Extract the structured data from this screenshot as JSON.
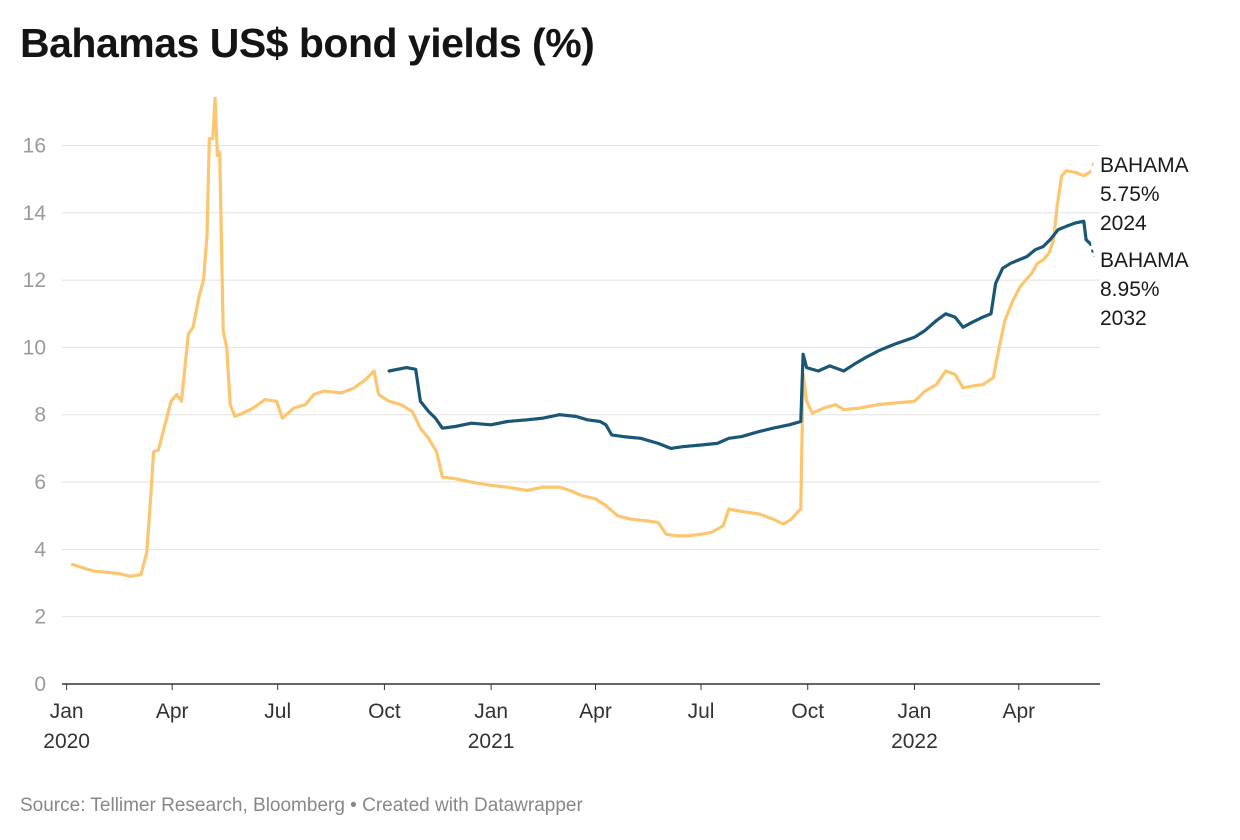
{
  "title": "Bahamas US$ bond yields (%)",
  "source": "Source: Tellimer Research, Bloomberg • Created with Datawrapper",
  "chart_data": {
    "type": "line",
    "title": "Bahamas US$ bond yields (%)",
    "xlabel": "",
    "ylabel": "",
    "ylim": [
      0,
      17.5
    ],
    "y_ticks": [
      0,
      2,
      4,
      6,
      8,
      10,
      12,
      14,
      16
    ],
    "x_range": [
      "2019-12-28",
      "2022-06-10"
    ],
    "x_ticks": [
      {
        "date": "2020-01-01",
        "label": "Jan",
        "year": "2020"
      },
      {
        "date": "2020-04-01",
        "label": "Apr",
        "year": ""
      },
      {
        "date": "2020-07-01",
        "label": "Jul",
        "year": ""
      },
      {
        "date": "2020-10-01",
        "label": "Oct",
        "year": ""
      },
      {
        "date": "2021-01-01",
        "label": "Jan",
        "year": "2021"
      },
      {
        "date": "2021-04-01",
        "label": "Apr",
        "year": ""
      },
      {
        "date": "2021-07-01",
        "label": "Jul",
        "year": ""
      },
      {
        "date": "2021-10-01",
        "label": "Oct",
        "year": ""
      },
      {
        "date": "2022-01-01",
        "label": "Jan",
        "year": "2022"
      },
      {
        "date": "2022-04-01",
        "label": "Apr",
        "year": ""
      }
    ],
    "grid": true,
    "series": [
      {
        "name": "BAHAMA 5.75% 2024",
        "label_lines": [
          "BAHAMA",
          "5.75%",
          "2024"
        ],
        "color": "#fbc66f",
        "points": [
          [
            "2020-01-06",
            3.55
          ],
          [
            "2020-01-15",
            3.45
          ],
          [
            "2020-01-25",
            3.35
          ],
          [
            "2020-02-05",
            3.32
          ],
          [
            "2020-02-15",
            3.28
          ],
          [
            "2020-02-25",
            3.2
          ],
          [
            "2020-03-05",
            3.25
          ],
          [
            "2020-03-10",
            3.9
          ],
          [
            "2020-03-13",
            5.3
          ],
          [
            "2020-03-16",
            6.9
          ],
          [
            "2020-03-20",
            6.95
          ],
          [
            "2020-03-25",
            7.6
          ],
          [
            "2020-03-31",
            8.4
          ],
          [
            "2020-04-05",
            8.6
          ],
          [
            "2020-04-09",
            8.4
          ],
          [
            "2020-04-12",
            9.4
          ],
          [
            "2020-04-15",
            10.4
          ],
          [
            "2020-04-19",
            10.6
          ],
          [
            "2020-04-24",
            11.5
          ],
          [
            "2020-04-28",
            12.0
          ],
          [
            "2020-05-01",
            13.3
          ],
          [
            "2020-05-03",
            16.2
          ],
          [
            "2020-05-06",
            16.2
          ],
          [
            "2020-05-08",
            17.4
          ],
          [
            "2020-05-10",
            15.7
          ],
          [
            "2020-05-12",
            15.8
          ],
          [
            "2020-05-15",
            10.5
          ],
          [
            "2020-05-18",
            10.0
          ],
          [
            "2020-05-21",
            8.3
          ],
          [
            "2020-05-25",
            7.95
          ],
          [
            "2020-06-01",
            8.05
          ],
          [
            "2020-06-10",
            8.2
          ],
          [
            "2020-06-20",
            8.45
          ],
          [
            "2020-06-30",
            8.4
          ],
          [
            "2020-07-05",
            7.9
          ],
          [
            "2020-07-15",
            8.2
          ],
          [
            "2020-07-25",
            8.3
          ],
          [
            "2020-08-01",
            8.6
          ],
          [
            "2020-08-10",
            8.7
          ],
          [
            "2020-08-25",
            8.65
          ],
          [
            "2020-09-05",
            8.8
          ],
          [
            "2020-09-15",
            9.05
          ],
          [
            "2020-09-22",
            9.3
          ],
          [
            "2020-09-26",
            8.6
          ],
          [
            "2020-10-05",
            8.4
          ],
          [
            "2020-10-15",
            8.3
          ],
          [
            "2020-10-25",
            8.1
          ],
          [
            "2020-11-01",
            7.6
          ],
          [
            "2020-11-08",
            7.3
          ],
          [
            "2020-11-15",
            6.9
          ],
          [
            "2020-11-20",
            6.15
          ],
          [
            "2020-12-01",
            6.1
          ],
          [
            "2020-12-15",
            6.0
          ],
          [
            "2021-01-01",
            5.9
          ],
          [
            "2021-01-15",
            5.85
          ],
          [
            "2021-02-01",
            5.75
          ],
          [
            "2021-02-15",
            5.85
          ],
          [
            "2021-03-01",
            5.85
          ],
          [
            "2021-03-10",
            5.75
          ],
          [
            "2021-03-20",
            5.6
          ],
          [
            "2021-04-01",
            5.5
          ],
          [
            "2021-04-10",
            5.3
          ],
          [
            "2021-04-20",
            5.0
          ],
          [
            "2021-05-01",
            4.9
          ],
          [
            "2021-05-15",
            4.85
          ],
          [
            "2021-05-25",
            4.8
          ],
          [
            "2021-06-01",
            4.45
          ],
          [
            "2021-06-10",
            4.4
          ],
          [
            "2021-06-20",
            4.4
          ],
          [
            "2021-07-01",
            4.45
          ],
          [
            "2021-07-10",
            4.5
          ],
          [
            "2021-07-20",
            4.7
          ],
          [
            "2021-07-25",
            5.2
          ],
          [
            "2021-08-01",
            5.15
          ],
          [
            "2021-08-10",
            5.1
          ],
          [
            "2021-08-20",
            5.05
          ],
          [
            "2021-09-01",
            4.9
          ],
          [
            "2021-09-10",
            4.75
          ],
          [
            "2021-09-17",
            4.9
          ],
          [
            "2021-09-22",
            5.1
          ],
          [
            "2021-09-25",
            5.2
          ],
          [
            "2021-09-27",
            9.2
          ],
          [
            "2021-09-30",
            8.4
          ],
          [
            "2021-10-05",
            8.05
          ],
          [
            "2021-10-15",
            8.2
          ],
          [
            "2021-10-25",
            8.3
          ],
          [
            "2021-11-01",
            8.15
          ],
          [
            "2021-11-15",
            8.2
          ],
          [
            "2021-12-01",
            8.3
          ],
          [
            "2021-12-15",
            8.35
          ],
          [
            "2022-01-01",
            8.4
          ],
          [
            "2022-01-10",
            8.7
          ],
          [
            "2022-01-20",
            8.9
          ],
          [
            "2022-01-28",
            9.3
          ],
          [
            "2022-02-05",
            9.2
          ],
          [
            "2022-02-12",
            8.8
          ],
          [
            "2022-02-20",
            8.85
          ],
          [
            "2022-03-01",
            8.9
          ],
          [
            "2022-03-10",
            9.1
          ],
          [
            "2022-03-15",
            10.0
          ],
          [
            "2022-03-20",
            10.8
          ],
          [
            "2022-03-27",
            11.4
          ],
          [
            "2022-04-02",
            11.8
          ],
          [
            "2022-04-07",
            12.0
          ],
          [
            "2022-04-12",
            12.2
          ],
          [
            "2022-04-17",
            12.5
          ],
          [
            "2022-04-22",
            12.6
          ],
          [
            "2022-04-27",
            12.8
          ],
          [
            "2022-05-01",
            13.2
          ],
          [
            "2022-05-04",
            14.2
          ],
          [
            "2022-05-08",
            15.1
          ],
          [
            "2022-05-12",
            15.25
          ],
          [
            "2022-05-20",
            15.2
          ],
          [
            "2022-05-27",
            15.1
          ],
          [
            "2022-06-01",
            15.2
          ]
        ],
        "dashed_to": [
          "2022-06-05",
          15.55
        ]
      },
      {
        "name": "BAHAMA 8.95% 2032",
        "label_lines": [
          "BAHAMA",
          "8.95%",
          "2032"
        ],
        "color": "#1a5775",
        "points": [
          [
            "2020-10-05",
            9.3
          ],
          [
            "2020-10-20",
            9.4
          ],
          [
            "2020-10-28",
            9.35
          ],
          [
            "2020-11-01",
            8.4
          ],
          [
            "2020-11-08",
            8.1
          ],
          [
            "2020-11-14",
            7.9
          ],
          [
            "2020-11-20",
            7.6
          ],
          [
            "2020-12-01",
            7.65
          ],
          [
            "2020-12-15",
            7.75
          ],
          [
            "2021-01-01",
            7.7
          ],
          [
            "2021-01-15",
            7.8
          ],
          [
            "2021-02-01",
            7.85
          ],
          [
            "2021-02-15",
            7.9
          ],
          [
            "2021-03-01",
            8.0
          ],
          [
            "2021-03-15",
            7.95
          ],
          [
            "2021-03-25",
            7.85
          ],
          [
            "2021-04-05",
            7.8
          ],
          [
            "2021-04-10",
            7.7
          ],
          [
            "2021-04-15",
            7.4
          ],
          [
            "2021-04-25",
            7.35
          ],
          [
            "2021-05-10",
            7.3
          ],
          [
            "2021-05-25",
            7.15
          ],
          [
            "2021-06-05",
            7.0
          ],
          [
            "2021-06-15",
            7.05
          ],
          [
            "2021-07-01",
            7.1
          ],
          [
            "2021-07-15",
            7.15
          ],
          [
            "2021-07-25",
            7.3
          ],
          [
            "2021-08-05",
            7.35
          ],
          [
            "2021-08-20",
            7.5
          ],
          [
            "2021-09-01",
            7.6
          ],
          [
            "2021-09-15",
            7.7
          ],
          [
            "2021-09-25",
            7.8
          ],
          [
            "2021-09-27",
            9.8
          ],
          [
            "2021-09-30",
            9.4
          ],
          [
            "2021-10-10",
            9.3
          ],
          [
            "2021-10-20",
            9.45
          ],
          [
            "2021-11-01",
            9.3
          ],
          [
            "2021-11-10",
            9.5
          ],
          [
            "2021-11-20",
            9.7
          ],
          [
            "2021-12-01",
            9.9
          ],
          [
            "2021-12-15",
            10.1
          ],
          [
            "2022-01-01",
            10.3
          ],
          [
            "2022-01-10",
            10.5
          ],
          [
            "2022-01-20",
            10.8
          ],
          [
            "2022-01-28",
            11.0
          ],
          [
            "2022-02-05",
            10.9
          ],
          [
            "2022-02-12",
            10.6
          ],
          [
            "2022-02-20",
            10.75
          ],
          [
            "2022-03-01",
            10.9
          ],
          [
            "2022-03-08",
            11.0
          ],
          [
            "2022-03-12",
            11.9
          ],
          [
            "2022-03-18",
            12.35
          ],
          [
            "2022-03-25",
            12.5
          ],
          [
            "2022-04-01",
            12.6
          ],
          [
            "2022-04-08",
            12.7
          ],
          [
            "2022-04-15",
            12.9
          ],
          [
            "2022-04-22",
            13.0
          ],
          [
            "2022-04-28",
            13.2
          ],
          [
            "2022-05-05",
            13.5
          ],
          [
            "2022-05-12",
            13.6
          ],
          [
            "2022-05-20",
            13.7
          ],
          [
            "2022-05-27",
            13.75
          ],
          [
            "2022-05-29",
            13.2
          ],
          [
            "2022-06-01",
            13.1
          ]
        ],
        "dashed_to": [
          "2022-06-05",
          12.7
        ]
      }
    ]
  }
}
